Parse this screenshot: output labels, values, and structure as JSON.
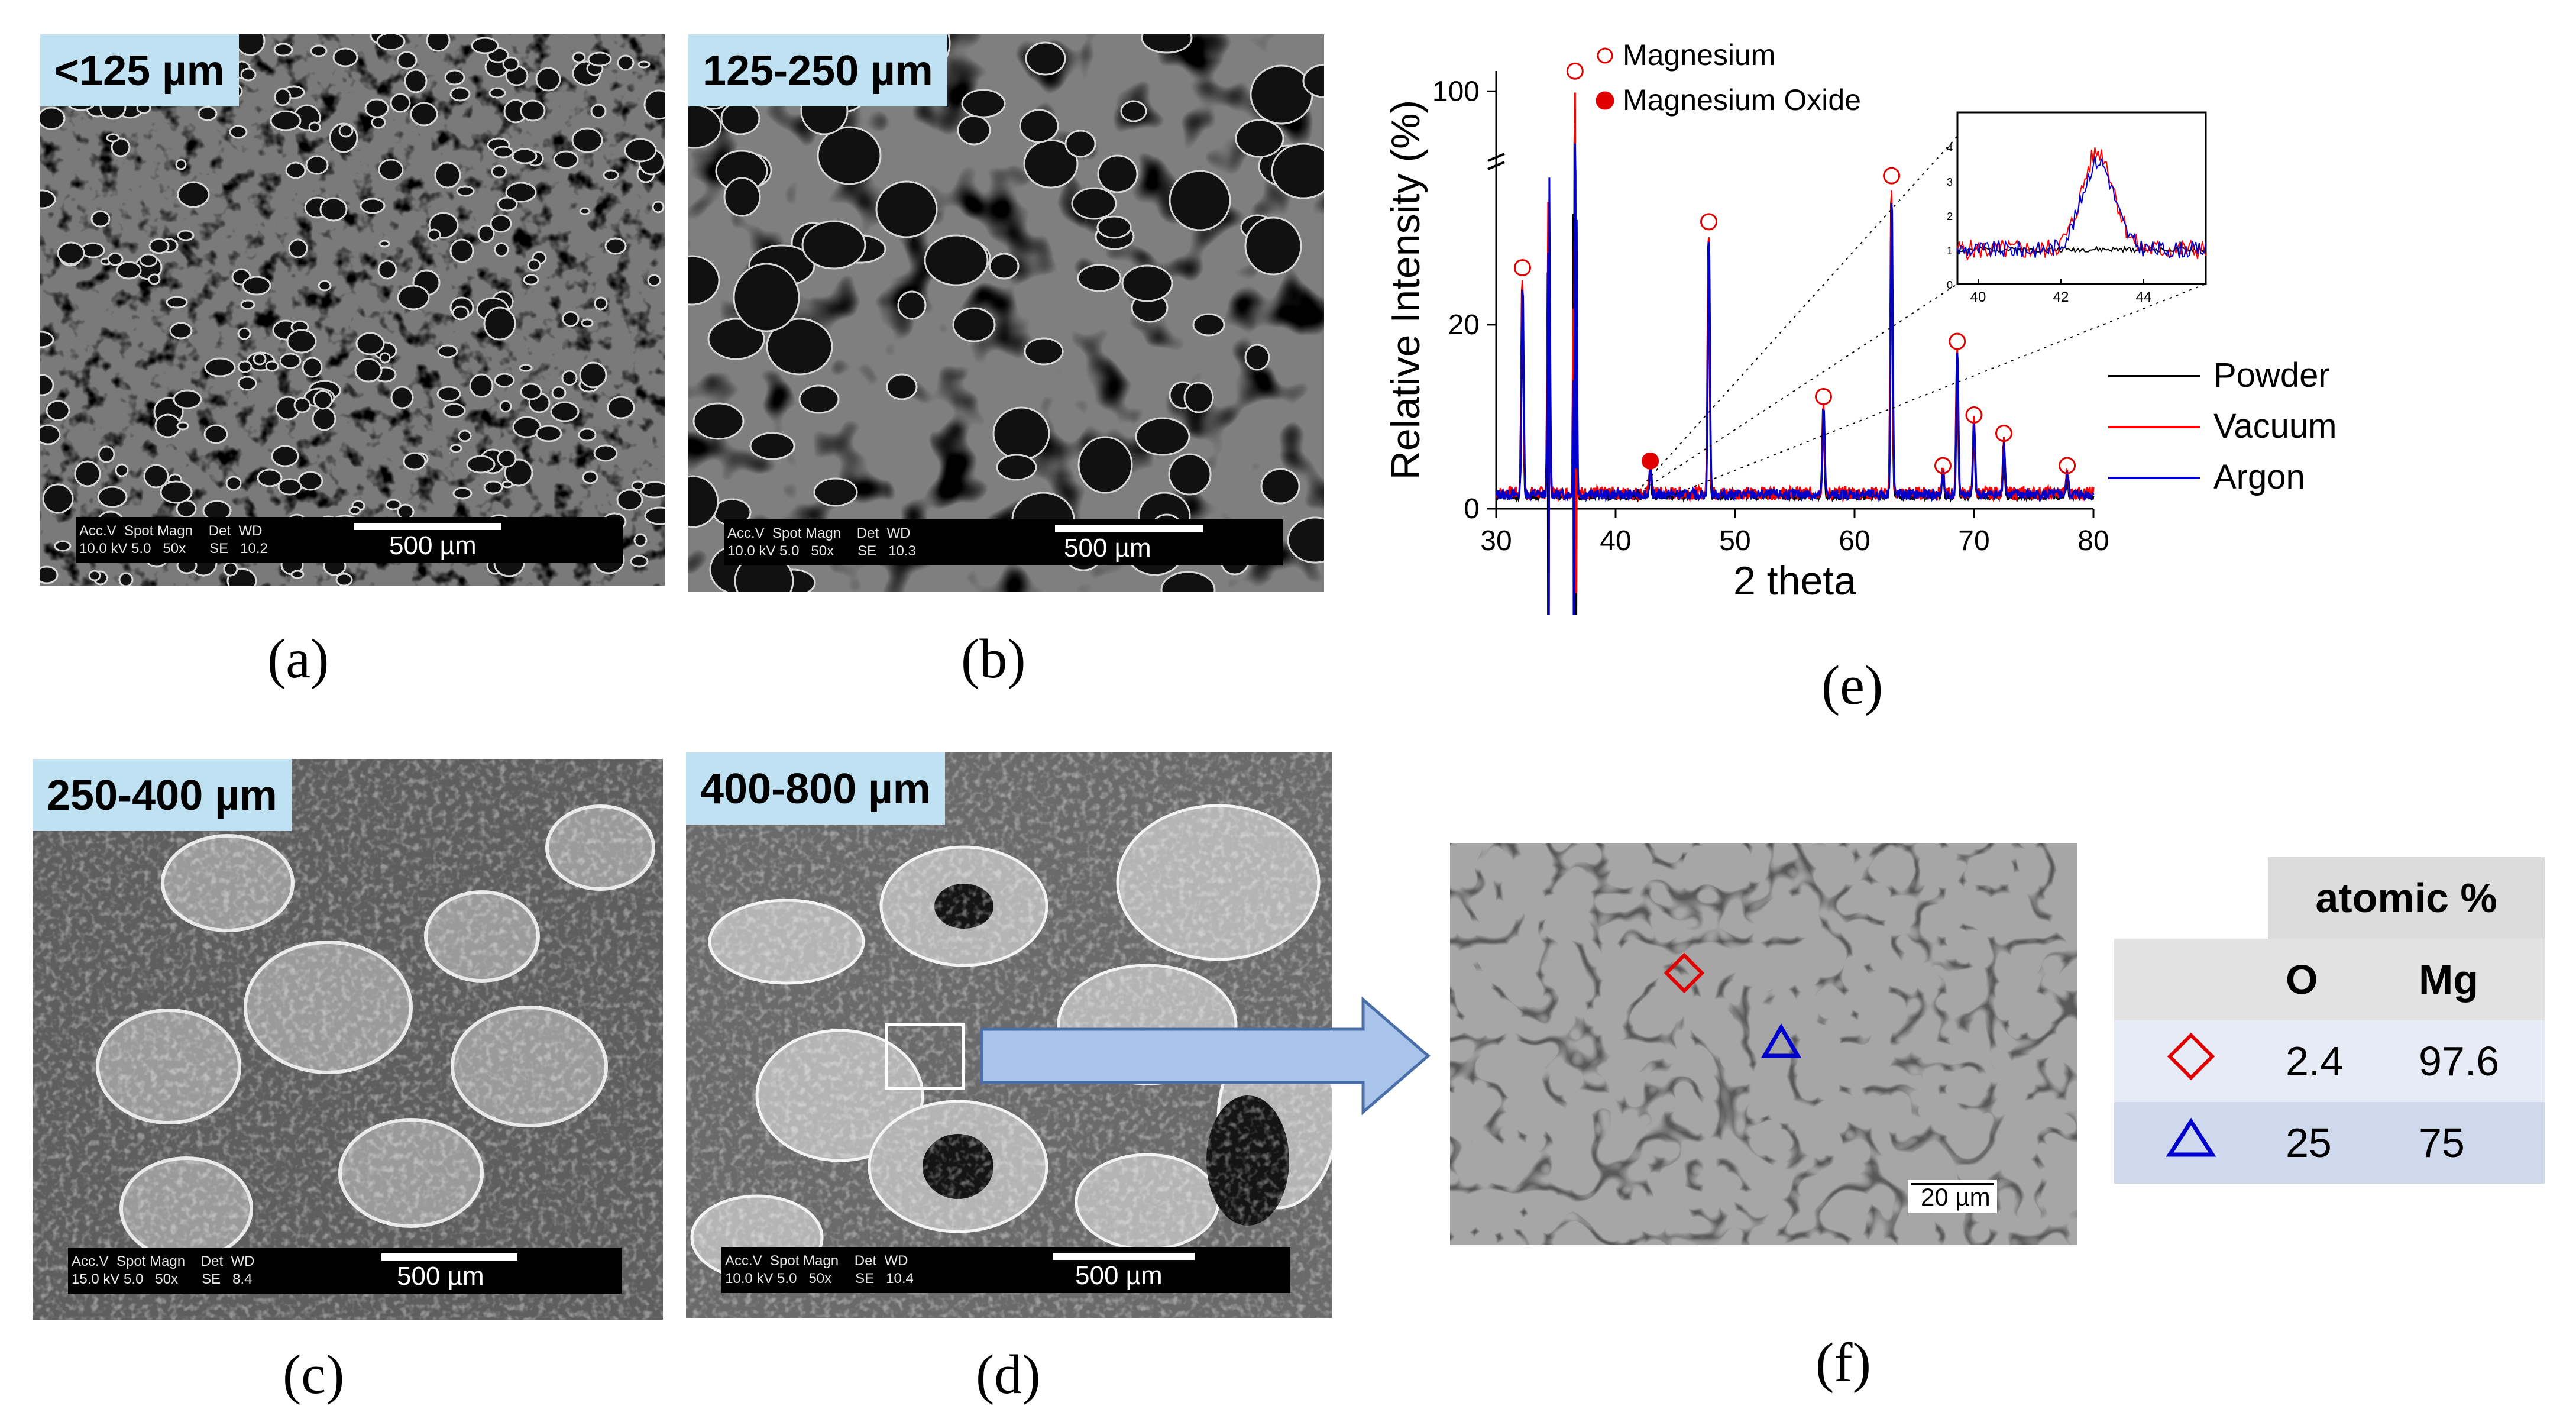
{
  "panels": {
    "a": {
      "size_label": "<125 µm",
      "caption": "(a)",
      "databar": {
        "line1": "Acc.V  Spot Magn    Det  WD",
        "line2": "10.0 kV 5.0   50x      SE   10.2",
        "scalebar": "500 µm"
      }
    },
    "b": {
      "size_label": "125-250 µm",
      "caption": "(b)",
      "databar": {
        "line1": "Acc.V  Spot Magn    Det  WD",
        "line2": "10.0 kV 5.0   50x      SE   10.3",
        "scalebar": "500 µm"
      }
    },
    "c": {
      "size_label": "250-400 µm",
      "caption": "(c)",
      "databar": {
        "line1": "Acc.V  Spot Magn    Det  WD",
        "line2": "15.0 kV 5.0   50x      SE   8.4",
        "scalebar": "500 µm"
      }
    },
    "d": {
      "size_label": "400-800 µm",
      "caption": "(d)",
      "databar": {
        "line1": "Acc.V  Spot Magn    Det  WD",
        "line2": "10.0 kV 5.0   50x      SE   10.4",
        "scalebar": "500 µm"
      }
    },
    "e": {
      "caption": "(e)"
    },
    "f": {
      "caption": "(f)",
      "scalebar": "20 µm"
    }
  },
  "chart_data": {
    "type": "line",
    "xlabel": "2 theta",
    "ylabel": "Relative Intensity (%)",
    "xlim": [
      30,
      80
    ],
    "xticks": [
      30,
      40,
      50,
      60,
      70,
      80
    ],
    "yticks": [
      "0",
      "20",
      "100"
    ],
    "y_axis_break": "between 35 and 95",
    "legend_position": "right",
    "series": [
      {
        "name": "Powder",
        "color": "#000000"
      },
      {
        "name": "Vacuum",
        "color": "#ff0000"
      },
      {
        "name": "Argon",
        "color": "#0000cc"
      }
    ],
    "peaks": [
      {
        "x": 32.2,
        "y": 24,
        "phase": "Magnesium"
      },
      {
        "x": 34.4,
        "y": 38,
        "phase": "Magnesium"
      },
      {
        "x": 36.6,
        "y": 100,
        "phase": "Magnesium"
      },
      {
        "x": 42.9,
        "y": 3,
        "phase": "Magnesium Oxide"
      },
      {
        "x": 47.8,
        "y": 29,
        "phase": "Magnesium"
      },
      {
        "x": 57.4,
        "y": 10,
        "phase": "Magnesium"
      },
      {
        "x": 63.1,
        "y": 34,
        "phase": "Magnesium"
      },
      {
        "x": 67.4,
        "y": 2.5,
        "phase": "Magnesium"
      },
      {
        "x": 68.6,
        "y": 16,
        "phase": "Magnesium"
      },
      {
        "x": 70.0,
        "y": 8,
        "phase": "Magnesium"
      },
      {
        "x": 72.5,
        "y": 6,
        "phase": "Magnesium"
      },
      {
        "x": 77.8,
        "y": 2.5,
        "phase": "Magnesium"
      }
    ],
    "markers": [
      {
        "label": "Magnesium",
        "symbol": "open-circle",
        "color": "#e00000"
      },
      {
        "label": "Magnesium Oxide",
        "symbol": "filled-circle",
        "color": "#e00000"
      }
    ],
    "inset": {
      "xlim": [
        39.5,
        45.5
      ],
      "xticks": [
        40,
        42,
        44
      ],
      "ylim": [
        0,
        5
      ],
      "yticks": [
        0,
        1,
        2,
        3,
        4
      ],
      "peak_x": 42.9,
      "peak_height": 3.8,
      "background": 1.0
    }
  },
  "edx_table": {
    "header": "atomic %",
    "columns": [
      "O",
      "Mg"
    ],
    "rows": [
      {
        "marker": "red-diamond",
        "values": [
          "2.4",
          "97.6"
        ]
      },
      {
        "marker": "blue-triangle",
        "values": [
          "25",
          "75"
        ]
      }
    ]
  },
  "colors": {
    "label_bg": "#bfe1f1",
    "arrow": "#a8c4ea",
    "table_header": "#dcdcdc",
    "table_row1": "#e6ebf5",
    "table_row2": "#cfd9ee"
  }
}
